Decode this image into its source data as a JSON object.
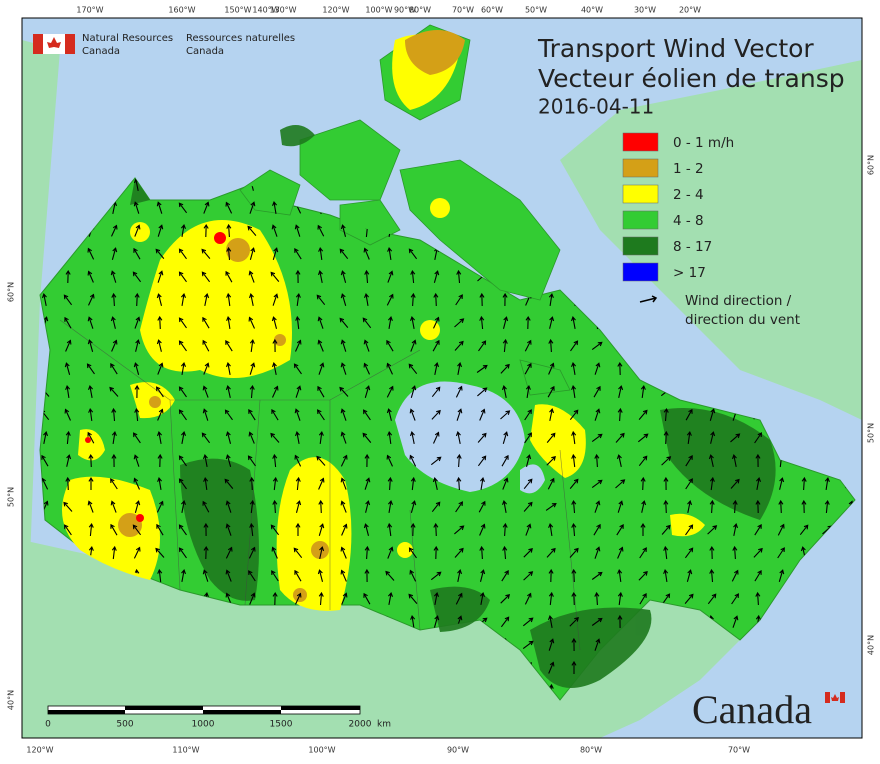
{
  "header": {
    "agency_en": [
      "Natural Resources",
      "Canada"
    ],
    "agency_fr": [
      "Ressources naturelles",
      "Canada"
    ]
  },
  "title": [
    "Transport Wind Vector",
    "Vecteur éolien de transp"
  ],
  "date": "2016-04-11",
  "legend": {
    "items": [
      {
        "label": "0 - 1 m/h",
        "color": "#ff0000"
      },
      {
        "label": "1 - 2",
        "color": "#d4a017"
      },
      {
        "label": "2 - 4",
        "color": "#ffff00"
      },
      {
        "label": "4 - 8",
        "color": "#33cc33"
      },
      {
        "label": "8 - 17",
        "color": "#1e7a1e"
      },
      {
        "label": "> 17",
        "color": "#0000ff"
      }
    ],
    "arrow_label": [
      "Wind direction /",
      "direction du vent"
    ]
  },
  "graticule": {
    "top": [
      "170°W",
      "160°W",
      "150°W",
      "140°W",
      "130°W",
      "120°W",
      "100°W",
      "90°W",
      "80°W",
      "70°W",
      "60°W",
      "50°W",
      "40°W",
      "30°W",
      "20°W"
    ],
    "left": [
      "60°N",
      "50°N",
      "40°N"
    ],
    "right": [
      "60°N",
      "50°N",
      "40°N"
    ],
    "bottom": [
      "120°W",
      "110°W",
      "100°W",
      "90°W",
      "80°W",
      "70°W"
    ]
  },
  "scale_bar": {
    "ticks": [
      "0",
      "500",
      "1000",
      "1500",
      "2000"
    ],
    "unit": "km"
  },
  "wordmark": "Canada"
}
